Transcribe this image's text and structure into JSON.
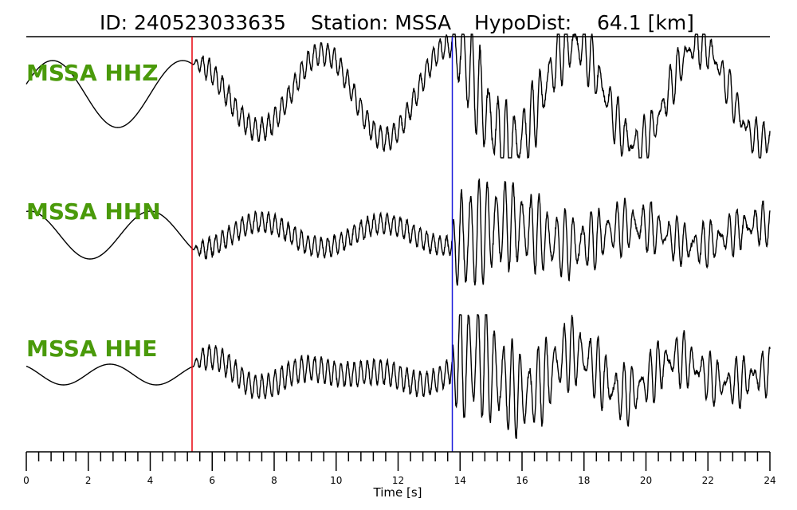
{
  "header": {
    "id_text": "ID: 240523033635",
    "station_text": "Station: MSSA",
    "hypodist_text": "HypoDist:    64.1 [km]"
  },
  "colors": {
    "label": "#4a9a0a",
    "trace": "#000000",
    "p_pick": "#e8000b",
    "s_pick": "#1a1adb"
  },
  "chart_data": {
    "type": "line",
    "xlabel": "Time [s]",
    "xlim": [
      0,
      24
    ],
    "x_ticks": [
      0,
      2,
      4,
      6,
      8,
      10,
      12,
      14,
      16,
      18,
      20,
      22,
      24
    ],
    "x_tick_labels": [
      "0",
      "2",
      "4",
      "6",
      "8",
      "10",
      "12",
      "14",
      "16",
      "18",
      "20",
      "22",
      "24"
    ],
    "minor_tick_step": 0.4,
    "picks": [
      {
        "phase": "P",
        "time": 5.35,
        "color": "#e8000b"
      },
      {
        "phase": "S",
        "time": 13.75,
        "color": "#1a1adb"
      }
    ],
    "traces": [
      {
        "name": "MSSA HHZ",
        "label": "MSSA HHZ"
      },
      {
        "name": "MSSA HHN",
        "label": "MSSA HHN"
      },
      {
        "name": "MSSA HHE",
        "label": "MSSA HHE"
      }
    ]
  }
}
